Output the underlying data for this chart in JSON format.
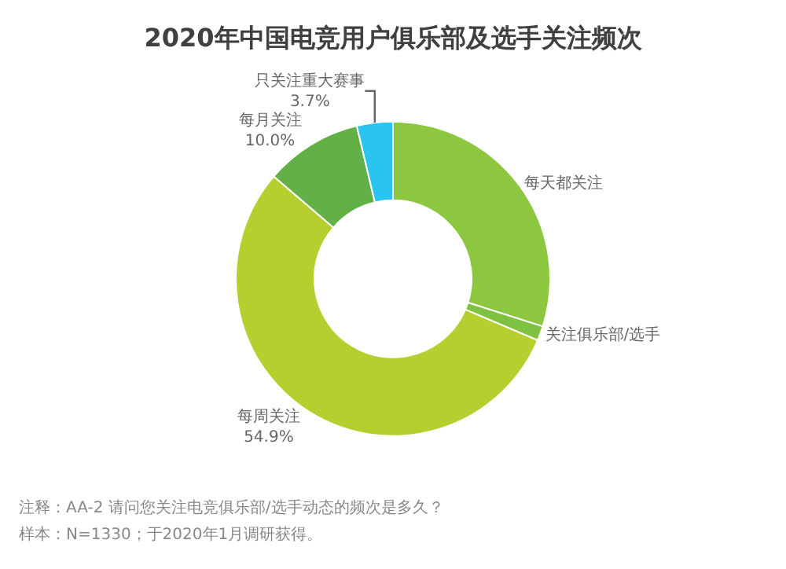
{
  "chart_data": {
    "type": "donut",
    "title": "2020年中国电竞用户俱乐部及选手关注频次",
    "categories": [
      "每天都关注",
      "关注俱乐部/选手",
      "每周关注",
      "每月关注",
      "只关注重大赛事"
    ],
    "values": [
      29.9,
      1.5,
      54.9,
      10.0,
      3.7
    ],
    "value_labels": [
      null,
      null,
      "54.9%",
      "10.0%",
      "3.7%"
    ],
    "colors": [
      "#8dc63f",
      "#7fc241",
      "#b5cf2f",
      "#62b046",
      "#29c4ef"
    ],
    "legend": false,
    "annotations": [
      "注释：AA-2 请问您关注电竞俱乐部/选手动态的频次是多久？",
      "样本：N=1330；于2020年1月调研获得。"
    ]
  }
}
